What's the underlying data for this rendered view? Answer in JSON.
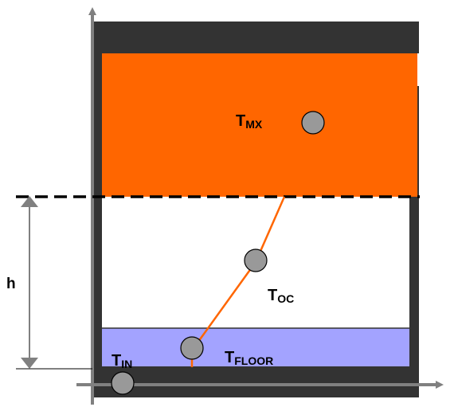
{
  "labels": {
    "h": "h",
    "t_mx_main": "T",
    "t_mx_sub": "MX",
    "t_oc_main": "T",
    "t_oc_sub": "OC",
    "t_floor_main": "T",
    "t_floor_sub": "FLOOR",
    "t_in_main": "T",
    "t_in_sub": "IN"
  },
  "colors": {
    "mixed_layer": "#ff6600",
    "floor_layer": "#a3a3ff",
    "wall": "#333333",
    "axis": "#808080",
    "sensor": "#999999",
    "profile_line": "#ff6600"
  }
}
